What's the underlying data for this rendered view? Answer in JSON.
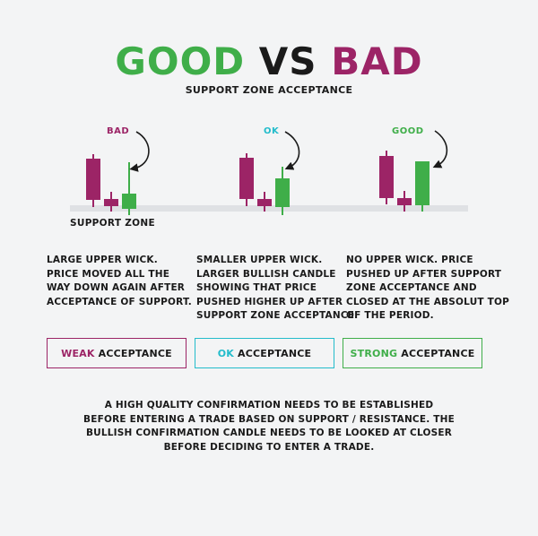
{
  "title": {
    "good": "GOOD",
    "vs": "VS",
    "bad": "BAD"
  },
  "subtitle": "SUPPORT ZONE ACCEPTANCE",
  "charts": [
    {
      "label": "BAD",
      "color": "#9c2466"
    },
    {
      "label": "OK",
      "color": "#23bccb"
    },
    {
      "label": "GOOD",
      "color": "#3fae49"
    }
  ],
  "zone_label": "SUPPORT ZONE",
  "descriptions": [
    {
      "lines": [
        "LARGE UPPER WICK.",
        "PRICE MOVED ALL THE",
        "WAY DOWN AGAIN AFTER",
        "ACCEPTANCE OF SUPPORT."
      ]
    },
    {
      "lines": [
        "SMALLER UPPER WICK.",
        "LARGER BULLISH CANDLE",
        "SHOWING THAT PRICE",
        "PUSHED HIGHER UP AFTER",
        "SUPPORT ZONE ACCEPTANCE."
      ]
    },
    {
      "lines": [
        "NO UPPER WICK. PRICE",
        "PUSHED UP AFTER SUPPORT",
        "ZONE ACCEPTANCE AND",
        "CLOSED AT THE ABSOLUT TOP",
        "OF THE PERIOD."
      ]
    }
  ],
  "boxes": [
    {
      "highlight": "WEAK",
      "rest": " ACCEPTANCE"
    },
    {
      "highlight": "OK",
      "rest": " ACCEPTANCE"
    },
    {
      "highlight": "STRONG",
      "rest": " ACCEPTANCE"
    }
  ],
  "footer": {
    "lines": [
      "A HIGH QUALITY CONFIRMATION NEEDS TO BE ESTABLISHED",
      "BEFORE ENTERING A TRADE BASED ON SUPPORT / RESISTANCE. THE",
      "BULLISH CONFIRMATION CANDLE NEEDS TO BE LOOKED AT CLOSER",
      "BEFORE DECIDING TO ENTER A TRADE."
    ]
  },
  "colors": {
    "bad": "#9c2466",
    "ok": "#23bccb",
    "good": "#3fae49",
    "zone": "#dfe1e4"
  }
}
